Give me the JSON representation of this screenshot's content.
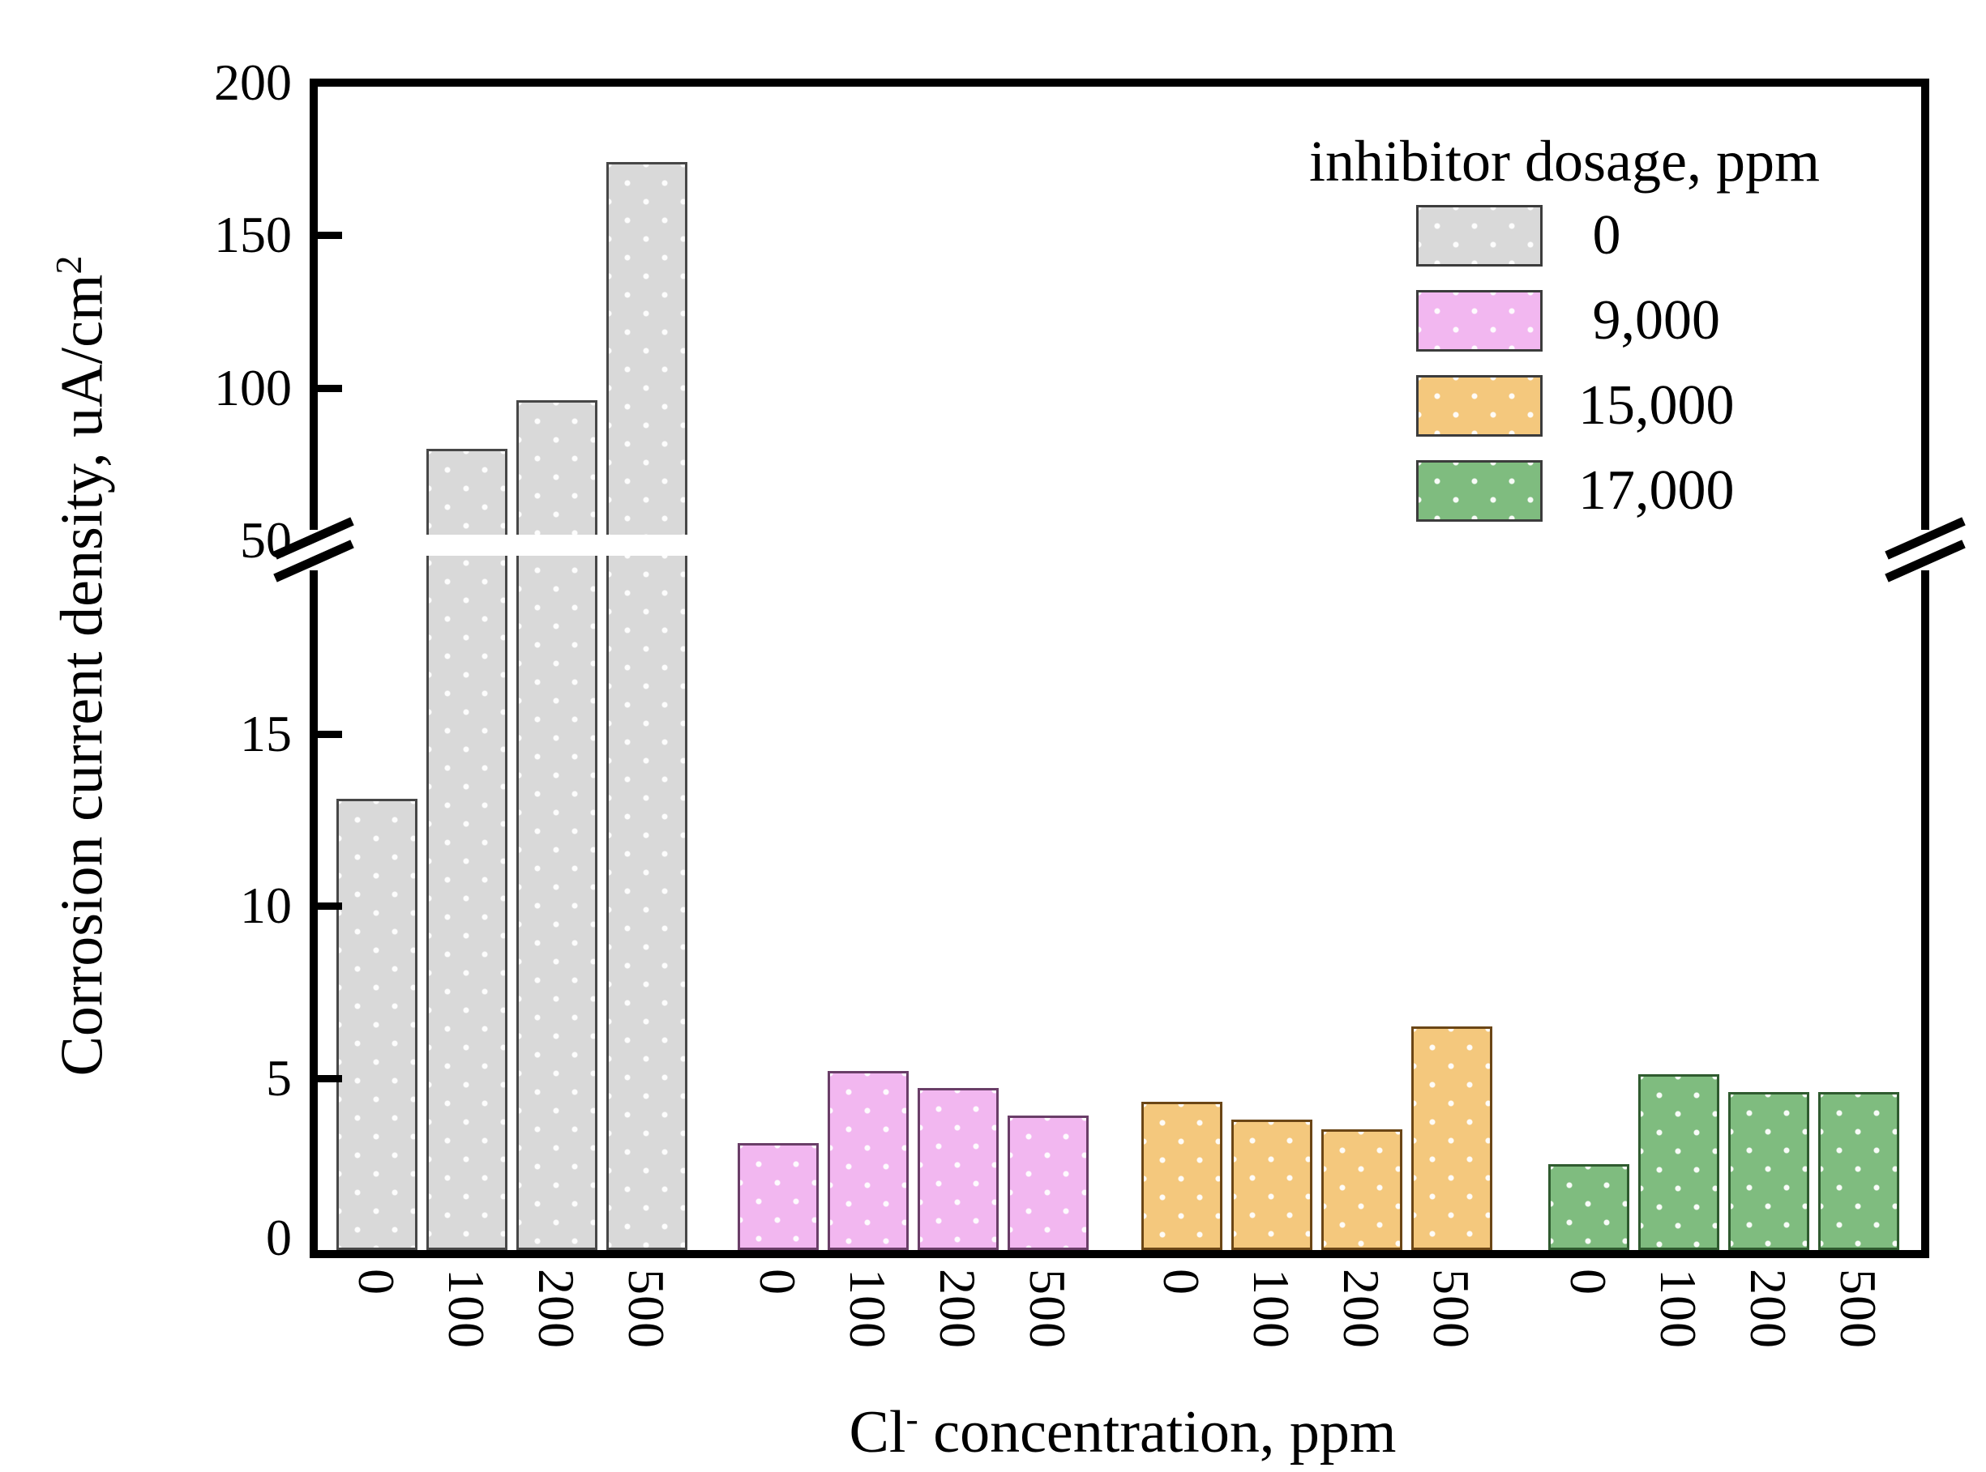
{
  "chart_data": {
    "type": "bar",
    "title": "",
    "xlabel": "Cl- concentration, ppm",
    "xlabel_parts": {
      "pre": "Cl",
      "sup": "-",
      "post": " concentration, ppm"
    },
    "ylabel": "Corrosion current density, uA/cm2",
    "ylabel_parts": {
      "main": "Corrosion current density, uA/cm",
      "sup": "2"
    },
    "categories": [
      "0",
      "100",
      "200",
      "500"
    ],
    "series": [
      {
        "name": "0",
        "color": "#d9d9d9",
        "border": "#474747",
        "values": [
          13.1,
          80,
          96,
          174
        ]
      },
      {
        "name": "9,000",
        "color": "#f2b7f0",
        "border": "#6a3e68",
        "values": [
          3.1,
          5.2,
          4.7,
          3.9
        ]
      },
      {
        "name": "15,000",
        "color": "#f4c87d",
        "border": "#6b4616",
        "values": [
          4.3,
          3.8,
          3.5,
          6.5
        ]
      },
      {
        "name": "17,000",
        "color": "#7fbc7f",
        "border": "#2f5b2f",
        "values": [
          2.5,
          5.1,
          4.6,
          4.6
        ]
      }
    ],
    "legend_title": "inhibitor dosage, ppm",
    "legend_position": "top-right",
    "grid": false,
    "y_axis_break": {
      "lower_ticks": [
        0,
        5,
        10,
        15
      ],
      "upper_ticks": [
        50,
        100,
        150,
        200
      ],
      "lower_range": [
        0,
        20.5
      ],
      "upper_range": [
        50,
        200
      ]
    }
  }
}
